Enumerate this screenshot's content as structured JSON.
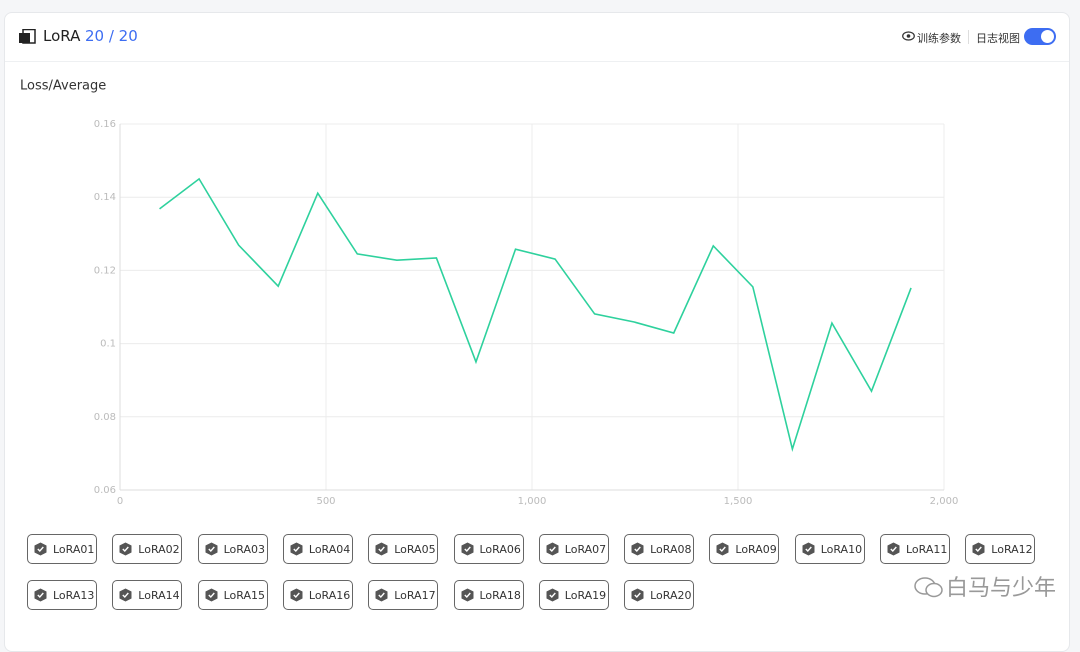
{
  "header": {
    "title": "LoRA",
    "count": "20 / 20",
    "actions": [
      "训练参数",
      "日志视图"
    ],
    "toggle_on": true
  },
  "chart_data": {
    "type": "line",
    "title": "Loss/Average",
    "x": [
      96,
      192,
      288,
      384,
      480,
      576,
      672,
      768,
      864,
      960,
      1056,
      1152,
      1248,
      1344,
      1440,
      1536,
      1632,
      1728,
      1824,
      1920
    ],
    "values": [
      0.1368,
      0.145,
      0.1269,
      0.1157,
      0.1411,
      0.1245,
      0.1228,
      0.1234,
      0.095,
      0.1258,
      0.1231,
      0.1081,
      0.1059,
      0.1029,
      0.1267,
      0.1155,
      0.0712,
      0.1056,
      0.087,
      0.1152
    ],
    "color": "#2ed19d",
    "xlim": [
      0,
      2000
    ],
    "xticks": [
      0,
      500,
      {
        "value": 1000,
        "label": "1,000"
      },
      {
        "value": 1500,
        "label": "1,500"
      },
      {
        "value": 2000,
        "label": "2,000"
      }
    ],
    "ylim": [
      0.06,
      0.16
    ],
    "yticks": [
      0.06,
      0.08,
      0.1,
      0.12,
      0.14,
      0.16
    ],
    "grid": true,
    "legend": [
      "LoRA01",
      "LoRA02",
      "LoRA03",
      "LoRA04",
      "LoRA05",
      "LoRA06",
      "LoRA07",
      "LoRA08",
      "LoRA09",
      "LoRA10",
      "LoRA11",
      "LoRA12",
      "LoRA13",
      "LoRA14",
      "LoRA15",
      "LoRA16",
      "LoRA17",
      "LoRA18",
      "LoRA19",
      "LoRA20"
    ]
  },
  "watermark": "白马与少年"
}
